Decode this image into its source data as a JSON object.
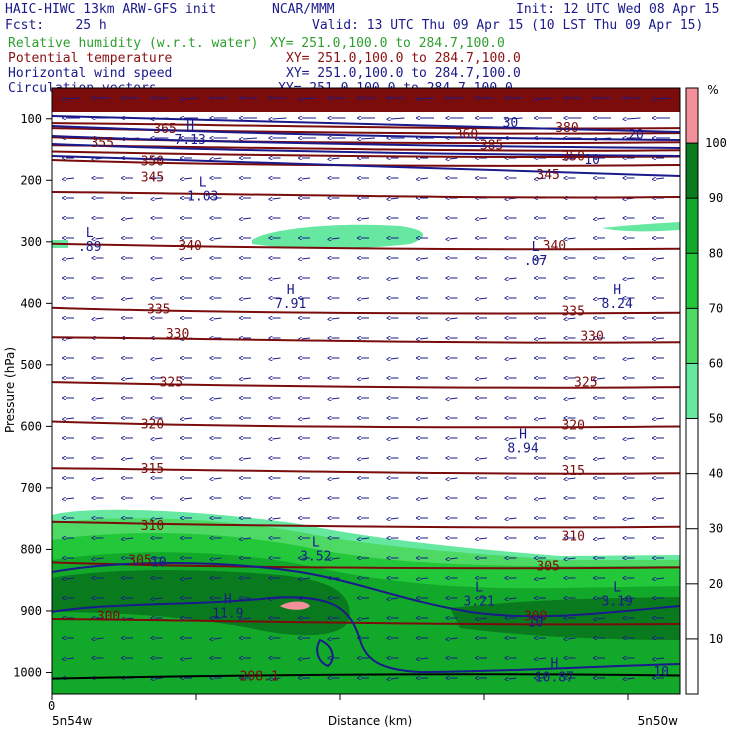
{
  "header": {
    "model": "HAIC-HIWC 13km ARW-GFS init",
    "org": "NCAR/MMM",
    "init": "Init: 12 UTC Wed 08 Apr 15",
    "fcst": "Fcst:    25 h",
    "valid": "Valid: 13 UTC Thu 09 Apr 15 (10 LST Thu 09 Apr 15)",
    "fields": [
      {
        "name": "Relative humidity (w.r.t. water)",
        "xy": "XY= 251.0,100.0 to 284.7,100.0",
        "color": "#2e9e2e"
      },
      {
        "name": "Potential temperature",
        "xy": "XY= 251.0,100.0 to 284.7,100.0",
        "color": "#8b1010"
      },
      {
        "name": "Horizontal wind speed",
        "xy": "XY= 251.0,100.0 to 284.7,100.0",
        "color": "#1a1a8c"
      },
      {
        "name": "Circulation vectors",
        "xy": "XY= 251.0,100.0 to 284.7,100.0",
        "color": "#1a1a8c"
      }
    ]
  },
  "chart_data": {
    "type": "cross-section",
    "ylabel": "Pressure (hPa)",
    "xlabel": "Distance (km)",
    "x_start_label": "0",
    "x_left_label": "5n54w",
    "x_right_label": "5n50w",
    "y_ticks": [
      100,
      200,
      300,
      400,
      500,
      600,
      700,
      800,
      900,
      1000
    ],
    "y_range": [
      50,
      1035
    ],
    "colorbar": {
      "unit": "%",
      "ticks": [
        10,
        20,
        30,
        40,
        50,
        60,
        70,
        80,
        90,
        100
      ],
      "bands": [
        {
          "from": 50,
          "to": 60,
          "color": "#66e8a0"
        },
        {
          "from": 60,
          "to": 70,
          "color": "#4ed864"
        },
        {
          "from": 70,
          "to": 80,
          "color": "#22c83a"
        },
        {
          "from": 80,
          "to": 90,
          "color": "#12a82a"
        },
        {
          "from": 90,
          "to": 100,
          "color": "#0a7a1e"
        },
        {
          "from": 100,
          "to": 110,
          "color": "#f4909a"
        }
      ]
    },
    "theta_contours": [
      {
        "value": "375",
        "p": 112
      },
      {
        "value": "370",
        "p": 120
      },
      {
        "value": "365",
        "p": 135
      },
      {
        "value": "360",
        "p": 148
      },
      {
        "value": "355",
        "p": 158
      },
      {
        "value": "350",
        "p": 172
      },
      {
        "value": "345",
        "p": 224
      },
      {
        "value": "340",
        "p": 308
      },
      {
        "value": "335",
        "p": 412
      },
      {
        "value": "330",
        "p": 460
      },
      {
        "value": "325",
        "p": 533
      },
      {
        "value": "320",
        "p": 597
      },
      {
        "value": "315",
        "p": 673
      },
      {
        "value": "310",
        "p": 760
      },
      {
        "value": "305",
        "p": 826
      },
      {
        "value": "300",
        "p": 918
      }
    ],
    "theta_labels": [
      {
        "text": "365",
        "x": 0.18,
        "p": 115
      },
      {
        "text": "355",
        "x": 0.08,
        "p": 138
      },
      {
        "text": "350",
        "x": 0.16,
        "p": 168
      },
      {
        "text": "360",
        "x": 0.66,
        "p": 124
      },
      {
        "text": "380",
        "x": 0.82,
        "p": 113
      },
      {
        "text": "385",
        "x": 0.7,
        "p": 142
      },
      {
        "text": "350",
        "x": 0.83,
        "p": 160
      },
      {
        "text": "345",
        "x": 0.16,
        "p": 194
      },
      {
        "text": "345",
        "x": 0.79,
        "p": 190
      },
      {
        "text": "340",
        "x": 0.22,
        "p": 305
      },
      {
        "text": "340",
        "x": 0.8,
        "p": 305
      },
      {
        "text": "335",
        "x": 0.17,
        "p": 408
      },
      {
        "text": "335",
        "x": 0.83,
        "p": 412
      },
      {
        "text": "330",
        "x": 0.2,
        "p": 448
      },
      {
        "text": "330",
        "x": 0.86,
        "p": 452
      },
      {
        "text": "325",
        "x": 0.19,
        "p": 527
      },
      {
        "text": "325",
        "x": 0.85,
        "p": 527
      },
      {
        "text": "320",
        "x": 0.16,
        "p": 595
      },
      {
        "text": "320",
        "x": 0.83,
        "p": 597
      },
      {
        "text": "315",
        "x": 0.16,
        "p": 668
      },
      {
        "text": "315",
        "x": 0.83,
        "p": 671
      },
      {
        "text": "310",
        "x": 0.16,
        "p": 760
      },
      {
        "text": "310",
        "x": 0.83,
        "p": 777
      },
      {
        "text": "305",
        "x": 0.14,
        "p": 816
      },
      {
        "text": "305",
        "x": 0.79,
        "p": 826
      },
      {
        "text": "300",
        "x": 0.09,
        "p": 907
      },
      {
        "text": "300",
        "x": 0.77,
        "p": 907
      },
      {
        "text": "298.1",
        "x": 0.33,
        "p": 1005
      }
    ],
    "hl_markers": [
      {
        "letter": "H",
        "value": "7.13",
        "x": 0.22,
        "p": 118
      },
      {
        "letter": "L",
        "value": "1.03",
        "x": 0.24,
        "p": 210
      },
      {
        "letter": "L",
        "value": ".89",
        "x": 0.06,
        "p": 292
      },
      {
        "letter": "L",
        "value": ".07",
        "x": 0.77,
        "p": 315
      },
      {
        "letter": "H",
        "value": "7.91",
        "x": 0.38,
        "p": 385
      },
      {
        "letter": "H",
        "value": "8.24",
        "x": 0.9,
        "p": 385
      },
      {
        "letter": "H",
        "value": "8.94",
        "x": 0.75,
        "p": 620
      },
      {
        "letter": "L",
        "value": "3.52",
        "x": 0.42,
        "p": 795
      },
      {
        "letter": "L",
        "value": "3.21",
        "x": 0.68,
        "p": 868
      },
      {
        "letter": "L",
        "value": "3.19",
        "x": 0.9,
        "p": 868
      },
      {
        "letter": "H",
        "value": "11.9",
        "x": 0.28,
        "p": 888
      },
      {
        "letter": "H",
        "value": "10.87",
        "x": 0.8,
        "p": 992
      }
    ],
    "wind_labels": [
      {
        "text": "30",
        "x": 0.73,
        "p": 105
      },
      {
        "text": "20",
        "x": 0.93,
        "p": 125
      },
      {
        "text": "10",
        "x": 0.86,
        "p": 165
      },
      {
        "text": "10",
        "x": 0.17,
        "p": 820
      },
      {
        "text": "10",
        "x": 0.77,
        "p": 917
      },
      {
        "text": "10",
        "x": 0.97,
        "p": 998
      }
    ]
  }
}
